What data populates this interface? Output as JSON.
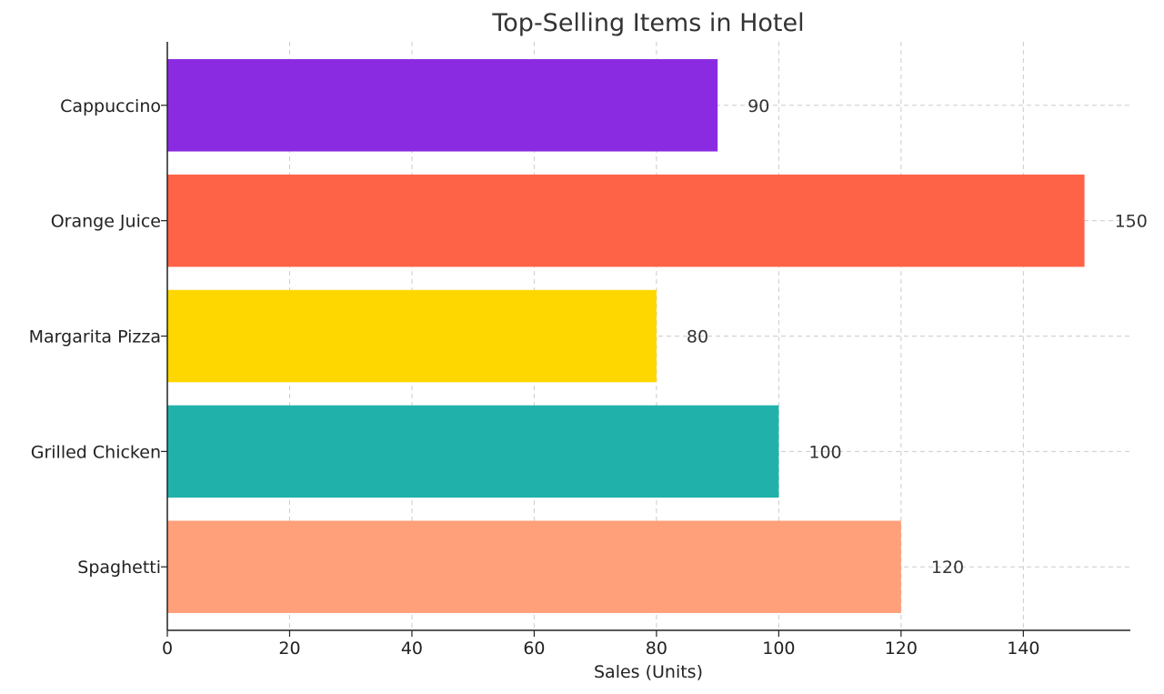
{
  "chart_data": {
    "type": "bar",
    "orientation": "horizontal",
    "title": "Top-Selling Items in Hotel",
    "xlabel": "Sales (Units)",
    "ylabel": "",
    "categories": [
      "Spaghetti",
      "Grilled Chicken",
      "Margarita Pizza",
      "Orange Juice",
      "Cappuccino"
    ],
    "values": [
      120,
      100,
      80,
      150,
      90
    ],
    "data_labels": [
      "120",
      "100",
      "80",
      "150",
      "90"
    ],
    "colors": [
      "#FFA07A",
      "#20B2AA",
      "#FFD700",
      "#FF6347",
      "#8A2BE2"
    ],
    "xlim": [
      0,
      157.5
    ],
    "xticks": [
      0,
      20,
      40,
      60,
      80,
      100,
      120,
      140
    ],
    "xtick_labels": [
      "0",
      "20",
      "40",
      "60",
      "80",
      "100",
      "120",
      "140"
    ],
    "grid": true,
    "legend": "none"
  }
}
